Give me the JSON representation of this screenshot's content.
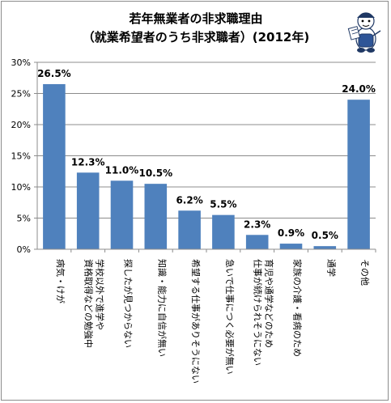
{
  "chart_data": {
    "type": "bar",
    "title": "若年無業者の非求職理由",
    "subtitle": "（就業希望者のうち非求職者）(2012年)",
    "categories": [
      "病気・けが",
      "学校以外で進学や資格取得などの勉強中",
      "探したが見つからない",
      "知識・能力に自信が無い",
      "希望する仕事がありそうにない",
      "急いで仕事につく必要が無い",
      "育児や通学などのため仕事が続けられそうにない",
      "家族の介護・看病のため",
      "通学",
      "その他"
    ],
    "category_lines": [
      [
        "病気・けが"
      ],
      [
        "学校以外で進学や",
        "資格取得などの勉強中"
      ],
      [
        "探したが見つからない"
      ],
      [
        "知識・能力に自信が無い"
      ],
      [
        "希望する仕事がありそうにない"
      ],
      [
        "急いで仕事につく必要が無い"
      ],
      [
        "育児や通学などのため",
        "仕事が続けられそうにない"
      ],
      [
        "家族の介護・看病のため"
      ],
      [
        "通学"
      ],
      [
        "その他"
      ]
    ],
    "values": [
      26.5,
      12.3,
      11.0,
      10.5,
      6.2,
      5.5,
      2.3,
      0.9,
      0.5,
      24.0
    ],
    "data_labels": [
      "26.5%",
      "12.3%",
      "11.0%",
      "10.5%",
      "6.2%",
      "5.5%",
      "2.3%",
      "0.9%",
      "0.5%",
      "24.0%"
    ],
    "ylim": [
      0,
      30
    ],
    "yticks": [
      0,
      5,
      10,
      15,
      20,
      25,
      30
    ],
    "ytick_labels": [
      "0%",
      "5%",
      "10%",
      "15%",
      "20%",
      "25%",
      "30%"
    ],
    "bar_color": "#4f81bd",
    "grid": true,
    "grid_color": "#8c8c8c",
    "legend": "none"
  },
  "mascot": {
    "icon": "mascot-reporter-icon"
  }
}
